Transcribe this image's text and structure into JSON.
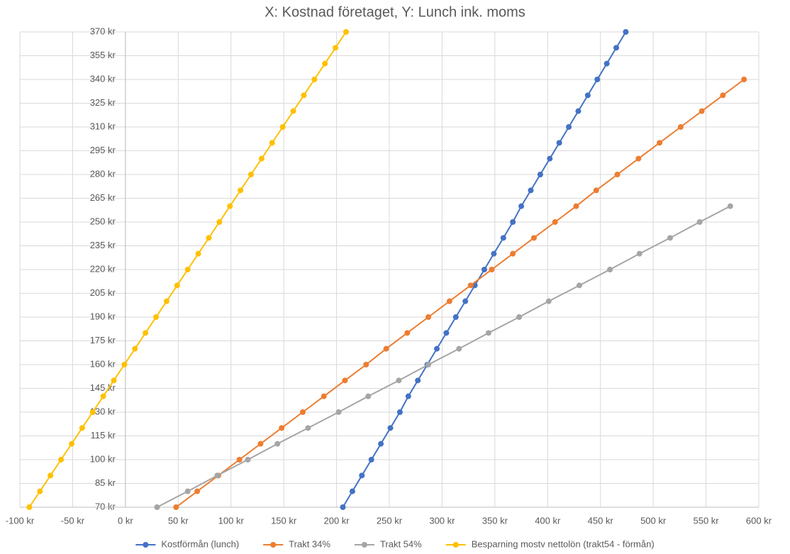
{
  "chart_data": {
    "type": "scatter",
    "title": "X: Kostnad företaget, Y: Lunch ink. moms",
    "xlim": [
      -100,
      600
    ],
    "xticks": [
      {
        "value": -100,
        "label": "-100 kr"
      },
      {
        "value": -50,
        "label": "-50 kr"
      },
      {
        "value": 0,
        "label": "0 kr"
      },
      {
        "value": 50,
        "label": "50 kr"
      },
      {
        "value": 100,
        "label": "100 kr"
      },
      {
        "value": 150,
        "label": "150 kr"
      },
      {
        "value": 200,
        "label": "200 kr"
      },
      {
        "value": 250,
        "label": "250 kr"
      },
      {
        "value": 300,
        "label": "300 kr"
      },
      {
        "value": 350,
        "label": "350 kr"
      },
      {
        "value": 400,
        "label": "400 kr"
      },
      {
        "value": 450,
        "label": "450 kr"
      },
      {
        "value": 500,
        "label": "500 kr"
      },
      {
        "value": 550,
        "label": "550 kr"
      },
      {
        "value": 600,
        "label": "600 kr"
      }
    ],
    "ylim": [
      70,
      370
    ],
    "yticks": [
      {
        "value": 70,
        "label": "70 kr"
      },
      {
        "value": 85,
        "label": "85 kr"
      },
      {
        "value": 100,
        "label": "100 kr"
      },
      {
        "value": 115,
        "label": "115 kr"
      },
      {
        "value": 130,
        "label": "130 kr"
      },
      {
        "value": 145,
        "label": "145 kr"
      },
      {
        "value": 160,
        "label": "160 kr"
      },
      {
        "value": 175,
        "label": "175 kr"
      },
      {
        "value": 190,
        "label": "190 kr"
      },
      {
        "value": 205,
        "label": "205 kr"
      },
      {
        "value": 220,
        "label": "220 kr"
      },
      {
        "value": 235,
        "label": "235 kr"
      },
      {
        "value": 250,
        "label": "250 kr"
      },
      {
        "value": 265,
        "label": "265 kr"
      },
      {
        "value": 280,
        "label": "280 kr"
      },
      {
        "value": 295,
        "label": "295 kr"
      },
      {
        "value": 310,
        "label": "310 kr"
      },
      {
        "value": 325,
        "label": "325 kr"
      },
      {
        "value": 340,
        "label": "340 kr"
      },
      {
        "value": 355,
        "label": "355 kr"
      },
      {
        "value": 370,
        "label": "370 kr"
      }
    ],
    "grid": true,
    "legend": "bottom",
    "series": [
      {
        "name": "Kostförmån (lunch)",
        "color": "#4472c4",
        "x": [
          206,
          215,
          224,
          233,
          242,
          251,
          260,
          268,
          277,
          286,
          295,
          304,
          313,
          322,
          331,
          340,
          349,
          358,
          367,
          375,
          384,
          393,
          402,
          411,
          420,
          429,
          438,
          447,
          456,
          465,
          474
        ],
        "values": [
          70,
          80,
          90,
          100,
          110,
          120,
          130,
          140,
          150,
          160,
          170,
          180,
          190,
          200,
          210,
          220,
          230,
          240,
          250,
          260,
          270,
          280,
          290,
          300,
          310,
          320,
          330,
          340,
          350,
          360,
          370
        ]
      },
      {
        "name": "Trakt 34%",
        "color": "#ed7d31",
        "x": [
          48,
          68,
          88,
          108,
          128,
          148,
          168,
          188,
          208,
          228,
          247,
          267,
          287,
          307,
          327,
          347,
          367,
          387,
          407,
          427,
          446,
          466,
          486,
          506,
          526,
          546,
          566,
          586
        ],
        "values": [
          70,
          80,
          90,
          100,
          110,
          120,
          130,
          140,
          150,
          160,
          170,
          180,
          190,
          200,
          210,
          220,
          230,
          240,
          250,
          260,
          270,
          280,
          290,
          300,
          310,
          320,
          330,
          340
        ]
      },
      {
        "name": "Trakt 54%",
        "color": "#a5a5a5",
        "x": [
          30,
          59,
          87,
          116,
          144,
          173,
          202,
          230,
          259,
          287,
          316,
          344,
          373,
          401,
          430,
          459,
          487,
          516,
          544,
          573
        ],
        "values": [
          70,
          80,
          90,
          100,
          110,
          120,
          130,
          140,
          150,
          160,
          170,
          180,
          190,
          200,
          210,
          220,
          230,
          240,
          250,
          260
        ]
      },
      {
        "name": "Besparning mostv nettolön (trakt54 - förmån)",
        "color": "#ffc000",
        "x": [
          -91,
          -81,
          -71,
          -61,
          -51,
          -41,
          -31,
          -21,
          -11,
          -1,
          9,
          19,
          29,
          39,
          49,
          59,
          69,
          79,
          89,
          99,
          109,
          119,
          129,
          139,
          149,
          159,
          169,
          179,
          189,
          199,
          209
        ],
        "values": [
          70,
          80,
          90,
          100,
          110,
          120,
          130,
          140,
          150,
          160,
          170,
          180,
          190,
          200,
          210,
          220,
          230,
          240,
          250,
          260,
          270,
          280,
          290,
          300,
          310,
          320,
          330,
          340,
          350,
          360,
          370
        ]
      }
    ]
  }
}
